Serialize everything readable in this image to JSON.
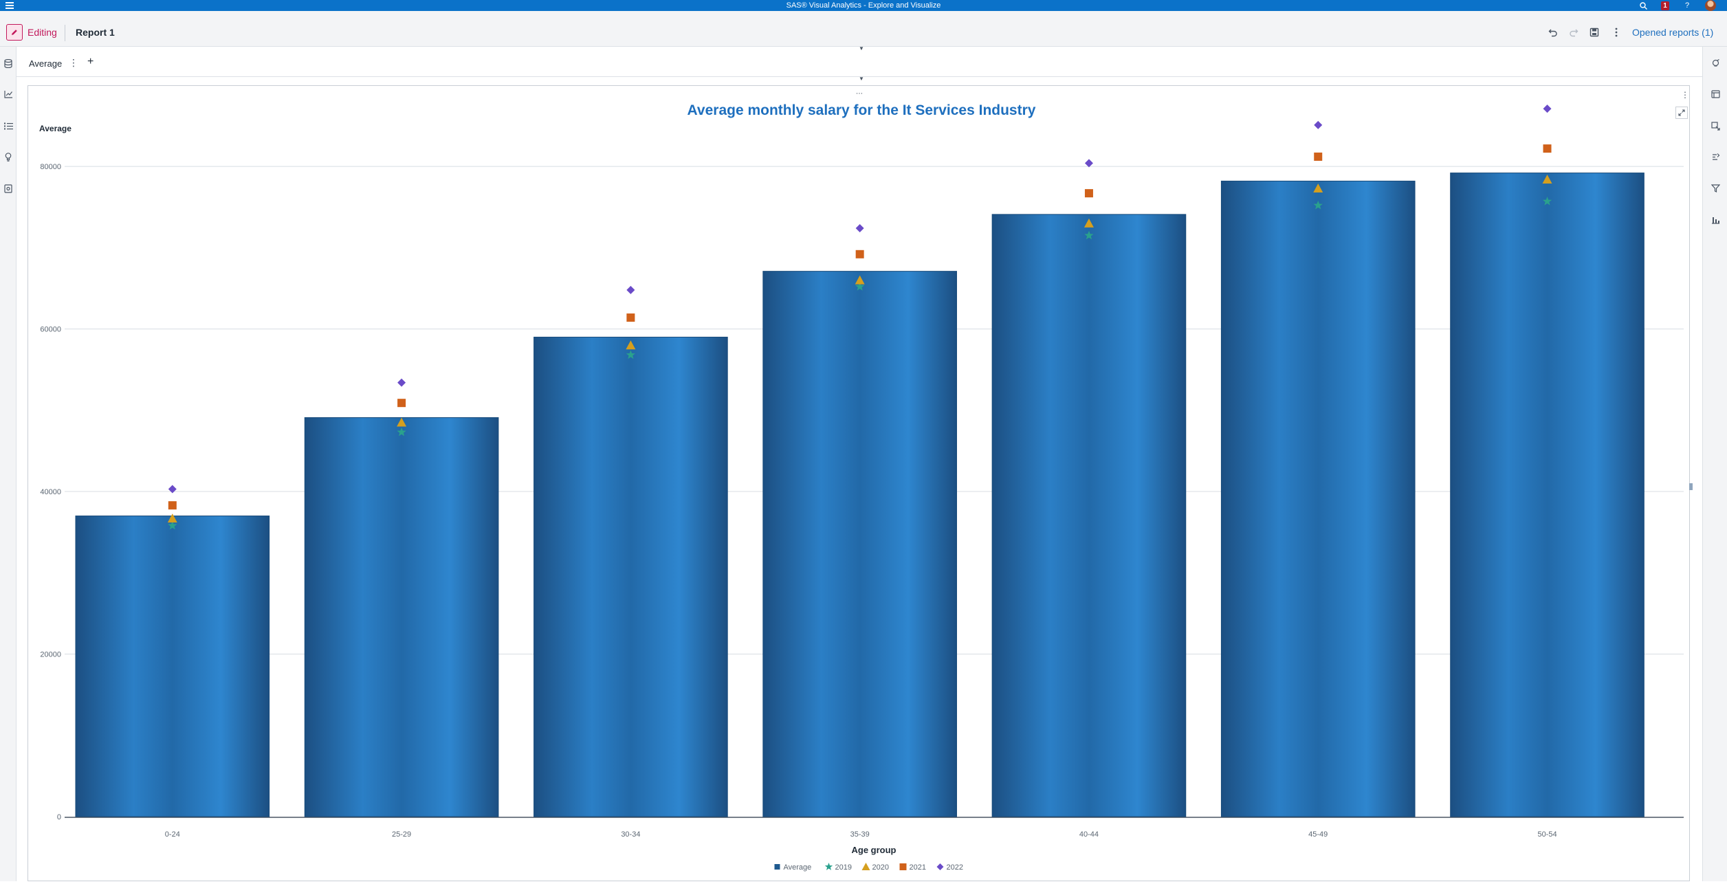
{
  "app": {
    "title": "SAS® Visual Analytics - Explore and Visualize",
    "notification_count": "1",
    "help_label": "?"
  },
  "toolbar": {
    "mode_label": "Editing",
    "report_title": "Report 1",
    "opened_reports_label": "Opened reports (1)"
  },
  "tabs": [
    {
      "label": "Average",
      "active": true
    }
  ],
  "tabs_add_label": "+",
  "chart_data": {
    "type": "bar",
    "title": "Average monthly salary for the It Services Industry",
    "xlabel": "Age group",
    "ylabel": "Average",
    "ylim": [
      0,
      85000
    ],
    "yticks": [
      0,
      20000,
      40000,
      60000,
      80000
    ],
    "categories": [
      "0-24",
      "25-29",
      "30-34",
      "35-39",
      "40-44",
      "45-49",
      "50-54"
    ],
    "bar_series": {
      "name": "Average",
      "color": "#1f5a8f",
      "values": [
        37000,
        49100,
        59000,
        67100,
        74100,
        78200,
        79200
      ]
    },
    "point_series": [
      {
        "name": "2019",
        "marker": "star",
        "color": "#2aa18d",
        "values": [
          35800,
          47300,
          56800,
          65200,
          71500,
          75200,
          75700
        ]
      },
      {
        "name": "2020",
        "marker": "triangle",
        "color": "#d59f1f",
        "values": [
          36700,
          48500,
          58000,
          66000,
          73000,
          77300,
          78400
        ]
      },
      {
        "name": "2021",
        "marker": "square",
        "color": "#d0611a",
        "values": [
          38300,
          50900,
          61400,
          69200,
          76700,
          81200,
          82200
        ]
      },
      {
        "name": "2022",
        "marker": "diamond",
        "color": "#6a4bc8",
        "values": [
          40300,
          53400,
          64800,
          72400,
          80400,
          85100,
          87100
        ]
      }
    ],
    "legend": {
      "position": "bottom",
      "entries": [
        "Average",
        "2019",
        "2020",
        "2021",
        "2022"
      ]
    },
    "grid": true
  },
  "colors": {
    "brand_blue": "#0b72c9",
    "editing_accent": "#c2185b",
    "title_blue": "#1e6fbe"
  }
}
